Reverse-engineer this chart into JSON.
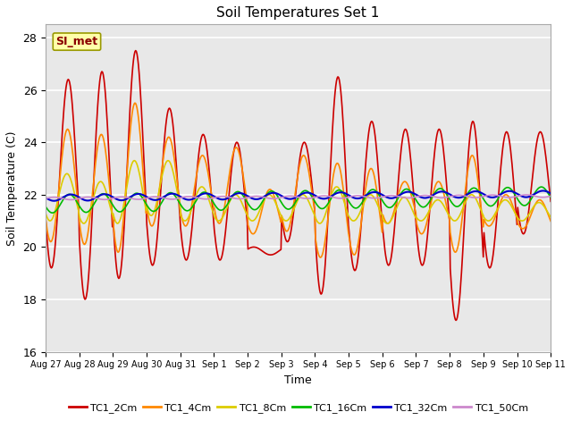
{
  "title": "Soil Temperatures Set 1",
  "xlabel": "Time",
  "ylabel": "Soil Temperature (C)",
  "ylim": [
    16,
    28.5
  ],
  "yticks": [
    16,
    18,
    20,
    22,
    24,
    26,
    28
  ],
  "annotation_text": "SI_met",
  "plot_bg": "#e8e8e8",
  "fig_bg": "#ffffff",
  "series": [
    {
      "label": "TC1_2Cm",
      "color": "#cc0000",
      "lw": 1.2
    },
    {
      "label": "TC1_4Cm",
      "color": "#ff8800",
      "lw": 1.2
    },
    {
      "label": "TC1_8Cm",
      "color": "#ddcc00",
      "lw": 1.2
    },
    {
      "label": "TC1_16Cm",
      "color": "#00bb00",
      "lw": 1.2
    },
    {
      "label": "TC1_32Cm",
      "color": "#0000cc",
      "lw": 1.5
    },
    {
      "label": "TC1_50Cm",
      "color": "#cc88cc",
      "lw": 1.2
    }
  ],
  "tc2_peaks": [
    26.4,
    26.7,
    27.5,
    25.3,
    24.3,
    24.0,
    19.7,
    24.0,
    26.5,
    24.8,
    24.5,
    24.5,
    24.8,
    24.4,
    24.4
  ],
  "tc2_troughs": [
    19.2,
    18.0,
    18.8,
    19.3,
    19.5,
    19.5,
    20.0,
    20.2,
    18.2,
    19.1,
    19.3,
    19.3,
    17.2,
    19.2,
    20.5
  ],
  "tc4_peaks": [
    24.5,
    24.3,
    25.5,
    24.2,
    23.5,
    23.8,
    22.2,
    23.5,
    23.2,
    23.0,
    22.5,
    22.5,
    23.5,
    22.0,
    21.8
  ],
  "tc4_troughs": [
    20.2,
    20.1,
    19.8,
    20.8,
    20.8,
    20.9,
    20.5,
    20.6,
    19.6,
    19.7,
    20.9,
    20.5,
    19.8,
    20.8,
    20.7
  ],
  "tc8_peaks": [
    22.8,
    22.5,
    23.3,
    23.3,
    22.3,
    22.0,
    22.0,
    22.0,
    22.3,
    22.0,
    21.9,
    21.8,
    22.0,
    21.8,
    21.7
  ],
  "tc8_troughs": [
    21.0,
    20.9,
    20.9,
    21.2,
    21.0,
    21.0,
    21.0,
    21.0,
    20.9,
    21.0,
    20.9,
    21.0,
    21.0,
    21.0,
    21.0
  ],
  "tc16_base": 21.65,
  "tc16_amp": 0.35,
  "tc32_base": 21.88,
  "tc32_amp": 0.12,
  "tc50_base": 21.85,
  "tc50_amp": 0.05,
  "n_days": 15,
  "ppd": 48,
  "tick_labels": [
    "Aug 27",
    "Aug 28",
    "Aug 29",
    "Aug 30",
    "Aug 31",
    "Sep 1",
    "Sep 2",
    "Sep 3",
    "Sep 4",
    "Sep 5",
    "Sep 6",
    "Sep 7",
    "Sep 8",
    "Sep 9",
    "Sep 10",
    "Sep 11"
  ]
}
